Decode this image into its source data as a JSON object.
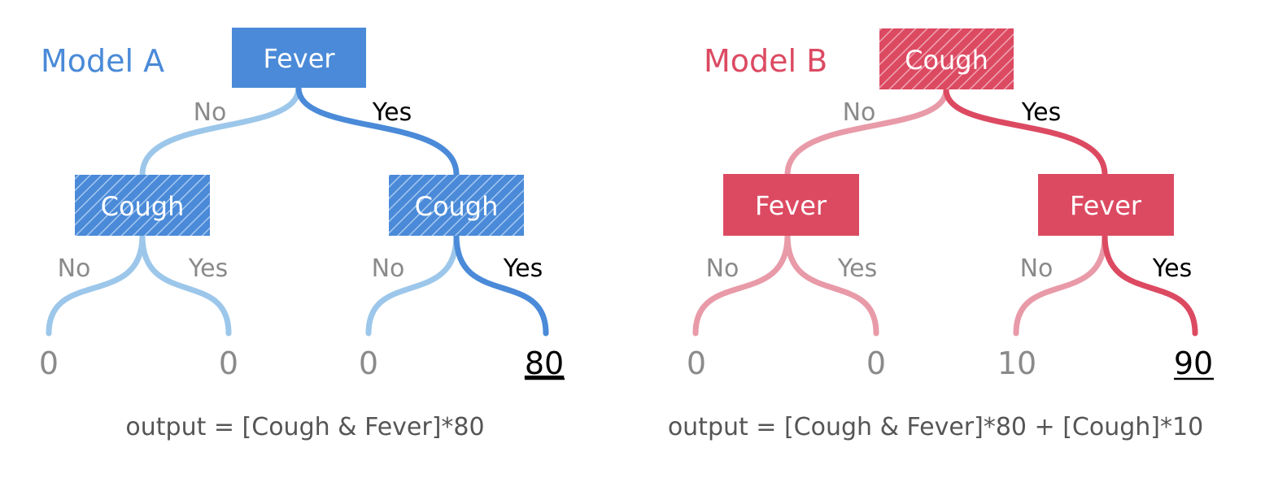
{
  "colors": {
    "model_a_dark": "#4a8ad8",
    "model_a_light": "#9cc7ea",
    "model_b_dark": "#dc4a62",
    "model_b_light": "#e89aa8",
    "muted_text": "#8a8a8a",
    "active_text": "#000000",
    "formula_text": "#555555"
  },
  "model_a": {
    "title": "Model A",
    "root": "Fever",
    "left_node": "Cough",
    "right_node": "Cough",
    "root_no": "No",
    "root_yes": "Yes",
    "left_no": "No",
    "left_yes": "Yes",
    "right_no": "No",
    "right_yes": "Yes",
    "leaves": [
      "0",
      "0",
      "0",
      "80"
    ],
    "formula": "output = [Cough & Fever]*80"
  },
  "model_b": {
    "title": "Model B",
    "root": "Cough",
    "left_node": "Fever",
    "right_node": "Fever",
    "root_no": "No",
    "root_yes": "Yes",
    "left_no": "No",
    "left_yes": "Yes",
    "right_no": "No",
    "right_yes": "Yes",
    "leaves": [
      "0",
      "0",
      "10",
      "90"
    ],
    "formula": "output = [Cough & Fever]*80 + [Cough]*10"
  }
}
